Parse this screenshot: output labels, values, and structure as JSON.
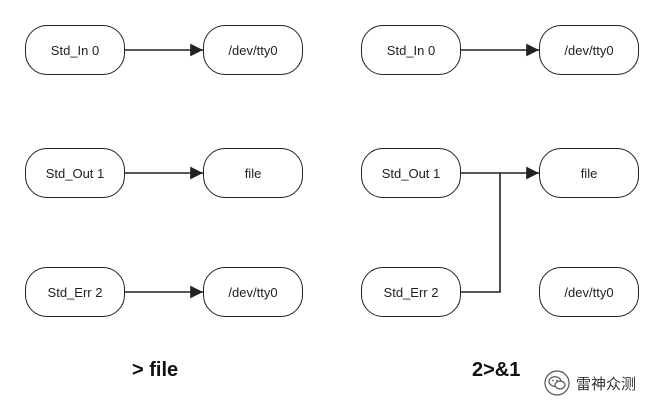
{
  "diagram_left": {
    "nodes": {
      "std_in": "Std_In 0",
      "tty_in": "/dev/tty0",
      "std_out": "Std_Out 1",
      "file": "file",
      "std_err": "Std_Err 2",
      "tty_err": "/dev/tty0"
    },
    "caption": "> file"
  },
  "diagram_right": {
    "nodes": {
      "std_in": "Std_In 0",
      "tty_in": "/dev/tty0",
      "std_out": "Std_Out 1",
      "file": "file",
      "std_err": "Std_Err 2",
      "tty_err": "/dev/tty0"
    },
    "caption": "2>&1"
  },
  "watermark": {
    "text": "雷神众测",
    "icon": "wechat-icon"
  }
}
